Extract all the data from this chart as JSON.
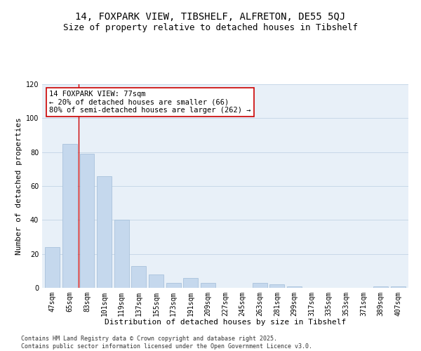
{
  "title": "14, FOXPARK VIEW, TIBSHELF, ALFRETON, DE55 5QJ",
  "subtitle": "Size of property relative to detached houses in Tibshelf",
  "xlabel": "Distribution of detached houses by size in Tibshelf",
  "ylabel": "Number of detached properties",
  "categories": [
    "47sqm",
    "65sqm",
    "83sqm",
    "101sqm",
    "119sqm",
    "137sqm",
    "155sqm",
    "173sqm",
    "191sqm",
    "209sqm",
    "227sqm",
    "245sqm",
    "263sqm",
    "281sqm",
    "299sqm",
    "317sqm",
    "335sqm",
    "353sqm",
    "371sqm",
    "389sqm",
    "407sqm"
  ],
  "values": [
    24,
    85,
    79,
    66,
    40,
    13,
    8,
    3,
    6,
    3,
    0,
    0,
    3,
    2,
    1,
    0,
    0,
    0,
    0,
    1,
    1
  ],
  "bar_color": "#c5d8ed",
  "bar_edge_color": "#a0bcd8",
  "vline_color": "#cc0000",
  "annotation_text": "14 FOXPARK VIEW: 77sqm\n← 20% of detached houses are smaller (66)\n80% of semi-detached houses are larger (262) →",
  "annotation_box_color": "#ffffff",
  "annotation_box_edge": "#cc0000",
  "ylim": [
    0,
    120
  ],
  "yticks": [
    0,
    20,
    40,
    60,
    80,
    100,
    120
  ],
  "grid_color": "#c8d8e8",
  "bg_color": "#e8f0f8",
  "footer_text": "Contains HM Land Registry data © Crown copyright and database right 2025.\nContains public sector information licensed under the Open Government Licence v3.0.",
  "title_fontsize": 10,
  "subtitle_fontsize": 9,
  "axis_label_fontsize": 8,
  "tick_fontsize": 7,
  "annotation_fontsize": 7.5,
  "footer_fontsize": 6
}
